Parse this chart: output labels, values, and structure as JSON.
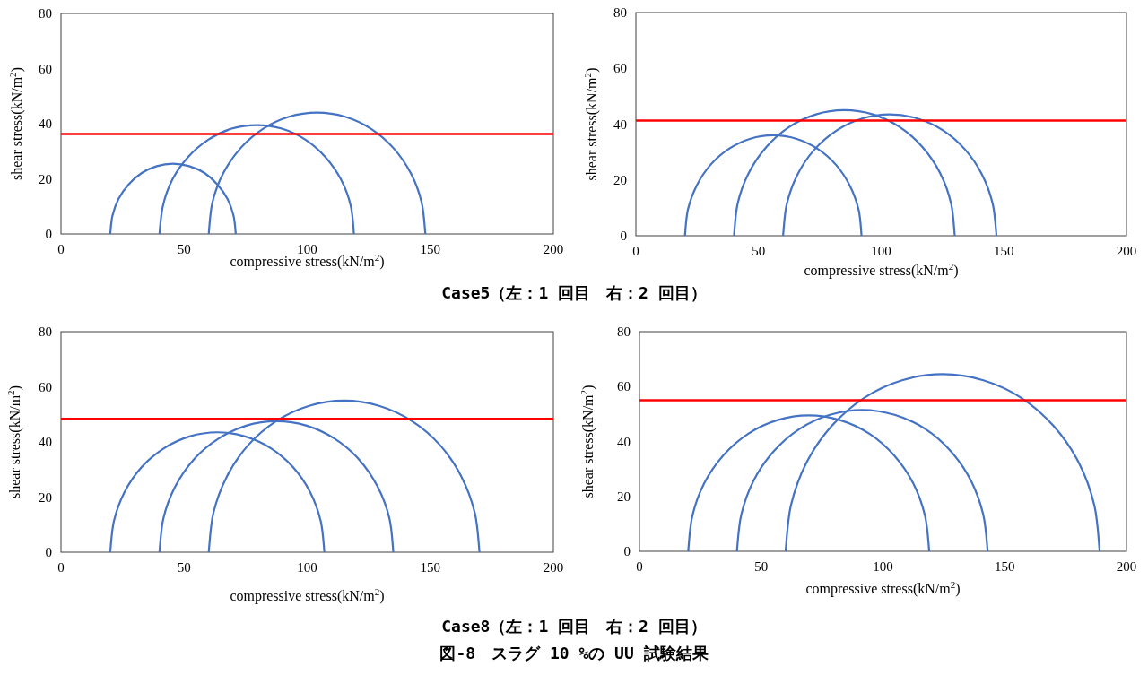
{
  "chart_data": [
    {
      "type": "line",
      "xlabel": "compressive stress(kN/m$^{2}$)",
      "ylabel": "shear stress(kN/m$^{2}$)",
      "xlim": [
        0,
        200
      ],
      "ylim": [
        0,
        80
      ],
      "xticks": [
        0,
        50,
        100,
        150,
        200
      ],
      "yticks": [
        0,
        20,
        40,
        60,
        80
      ],
      "series": [
        {
          "color": "#4472c4",
          "x": [
            20,
            20.9,
            23.4,
            27.5,
            32.8,
            38.9,
            45.5,
            52.1,
            58.3,
            63.5,
            67.6,
            70.1,
            71
          ],
          "values": [
            0,
            6.6,
            12.8,
            18,
            22.1,
            24.6,
            25.5,
            24.6,
            22.1,
            18,
            12.8,
            6.6,
            0
          ]
        },
        {
          "color": "#4472c4",
          "x": [
            40,
            41.4,
            45.3,
            51.6,
            59.8,
            69.3,
            79.5,
            89.7,
            99.3,
            107.4,
            113.7,
            117.7,
            119
          ],
          "values": [
            0,
            10.2,
            19.8,
            27.9,
            34.2,
            38.2,
            39.5,
            38.2,
            34.2,
            27.9,
            19.8,
            10.2,
            0
          ]
        },
        {
          "color": "#4472c4",
          "x": [
            60,
            61.5,
            65.9,
            72.9,
            82,
            92.6,
            104,
            115.4,
            126,
            135.1,
            142.1,
            146.5,
            148
          ],
          "values": [
            0,
            11.4,
            22,
            31.1,
            38.1,
            42.5,
            44,
            42.5,
            38.1,
            31.1,
            22,
            11.4,
            0
          ]
        }
      ],
      "ref_lines": [
        {
          "axis": "y",
          "value": 36.3,
          "color": "#ff0000"
        }
      ],
      "annotations": [
        "Case5（左：1 回目　右：2 回目）"
      ]
    },
    {
      "type": "line",
      "xlabel": "compressive stress(kN/m$^{2}$)",
      "ylabel": "shear stress(kN/m$^{2}$)",
      "xlim": [
        0,
        200
      ],
      "ylim": [
        0,
        80
      ],
      "xticks": [
        0,
        50,
        100,
        150,
        200
      ],
      "yticks": [
        0,
        20,
        40,
        60,
        80
      ],
      "series": [
        {
          "color": "#4472c4",
          "x": [
            20,
            21.2,
            24.8,
            30.5,
            38,
            46.7,
            56,
            65.3,
            74,
            81.5,
            87.2,
            90.8,
            92
          ],
          "values": [
            0,
            9.3,
            18,
            25.5,
            31.2,
            34.8,
            36,
            34.8,
            31.2,
            25.5,
            18,
            9.3,
            0
          ]
        },
        {
          "color": "#4472c4",
          "x": [
            40,
            41.5,
            46,
            53.2,
            62.5,
            73.4,
            85,
            96.6,
            107.5,
            116.8,
            124,
            128.5,
            130
          ],
          "values": [
            0,
            11.6,
            22.5,
            31.8,
            39,
            43.5,
            45,
            43.5,
            39,
            31.8,
            22.5,
            11.6,
            0
          ]
        },
        {
          "color": "#4472c4",
          "x": [
            60,
            61.5,
            65.8,
            72.7,
            81.8,
            92.2,
            103.5,
            114.8,
            125.3,
            134.3,
            141.2,
            145.5,
            147
          ],
          "values": [
            0,
            11.3,
            21.8,
            30.8,
            37.7,
            42,
            43.5,
            42,
            37.7,
            30.8,
            21.8,
            11.3,
            0
          ]
        }
      ],
      "ref_lines": [
        {
          "axis": "y",
          "value": 41.3,
          "color": "#ff0000"
        }
      ]
    },
    {
      "type": "line",
      "xlabel": "compressive stress(kN/m$^{2}$)",
      "ylabel": "shear stress(kN/m$^{2}$)",
      "xlim": [
        0,
        200
      ],
      "ylim": [
        0,
        80
      ],
      "xticks": [
        0,
        50,
        100,
        150,
        200
      ],
      "yticks": [
        0,
        20,
        40,
        60,
        80
      ],
      "series": [
        {
          "color": "#4472c4",
          "x": [
            20,
            21.5,
            25.8,
            32.7,
            41.8,
            52.2,
            63.5,
            74.8,
            85.3,
            94.3,
            101.2,
            105.5,
            107
          ],
          "values": [
            0,
            11.3,
            21.8,
            30.8,
            37.7,
            42,
            43.5,
            42,
            37.7,
            30.8,
            21.8,
            11.3,
            0
          ]
        },
        {
          "color": "#4472c4",
          "x": [
            40,
            41.6,
            46.4,
            53.9,
            63.8,
            75.2,
            87.5,
            99.8,
            111.3,
            121.1,
            128.6,
            133.4,
            135
          ],
          "values": [
            0,
            12.3,
            23.8,
            33.6,
            41.1,
            45.9,
            47.5,
            45.9,
            41.1,
            33.6,
            23.8,
            12.3,
            0
          ]
        },
        {
          "color": "#4472c4",
          "x": [
            60,
            61.9,
            67.4,
            76.1,
            87.5,
            100.8,
            115,
            129.2,
            142.5,
            153.9,
            162.6,
            168.1,
            170
          ],
          "values": [
            0,
            14.2,
            27.5,
            38.9,
            47.6,
            53.1,
            55,
            53.1,
            47.6,
            38.9,
            27.5,
            14.2,
            0
          ]
        }
      ],
      "ref_lines": [
        {
          "axis": "y",
          "value": 48.4,
          "color": "#ff0000"
        }
      ],
      "annotations": [
        "Case8（左：1 回目　右：2 回目）",
        "図-8　スラグ 10 %の UU 試験結果"
      ]
    },
    {
      "type": "line",
      "xlabel": "compressive stress(kN/m$^{2}$)",
      "ylabel": "shear stress(kN/m$^{2}$)",
      "xlim": [
        0,
        200
      ],
      "ylim": [
        0,
        80
      ],
      "xticks": [
        0,
        50,
        100,
        150,
        200
      ],
      "yticks": [
        0,
        20,
        40,
        60,
        80
      ],
      "series": [
        {
          "color": "#4472c4",
          "x": [
            20,
            21.7,
            26.6,
            34.5,
            44.8,
            56.7,
            69.5,
            82.3,
            94.3,
            104.5,
            112.4,
            117.3,
            119
          ],
          "values": [
            0,
            12.8,
            24.8,
            35,
            42.9,
            47.8,
            49.5,
            47.8,
            42.9,
            35,
            24.8,
            12.8,
            0
          ]
        },
        {
          "color": "#4472c4",
          "x": [
            40,
            41.8,
            46.9,
            55.1,
            65.8,
            78.2,
            91.5,
            104.8,
            117.3,
            127.9,
            136.1,
            141.2,
            143
          ],
          "values": [
            0,
            13.3,
            25.8,
            36.4,
            44.6,
            49.7,
            51.5,
            49.7,
            44.6,
            36.4,
            25.8,
            13.3,
            0
          ]
        },
        {
          "color": "#4472c4",
          "x": [
            60,
            62.2,
            68.6,
            78.9,
            92.3,
            107.8,
            124.5,
            141.2,
            156.8,
            170.1,
            180.4,
            186.8,
            189
          ],
          "values": [
            0,
            16.7,
            32.3,
            45.6,
            55.9,
            62.3,
            64.5,
            62.3,
            55.9,
            45.6,
            32.3,
            16.7,
            0
          ]
        }
      ],
      "ref_lines": [
        {
          "axis": "y",
          "value": 55,
          "color": "#ff0000"
        }
      ]
    }
  ]
}
